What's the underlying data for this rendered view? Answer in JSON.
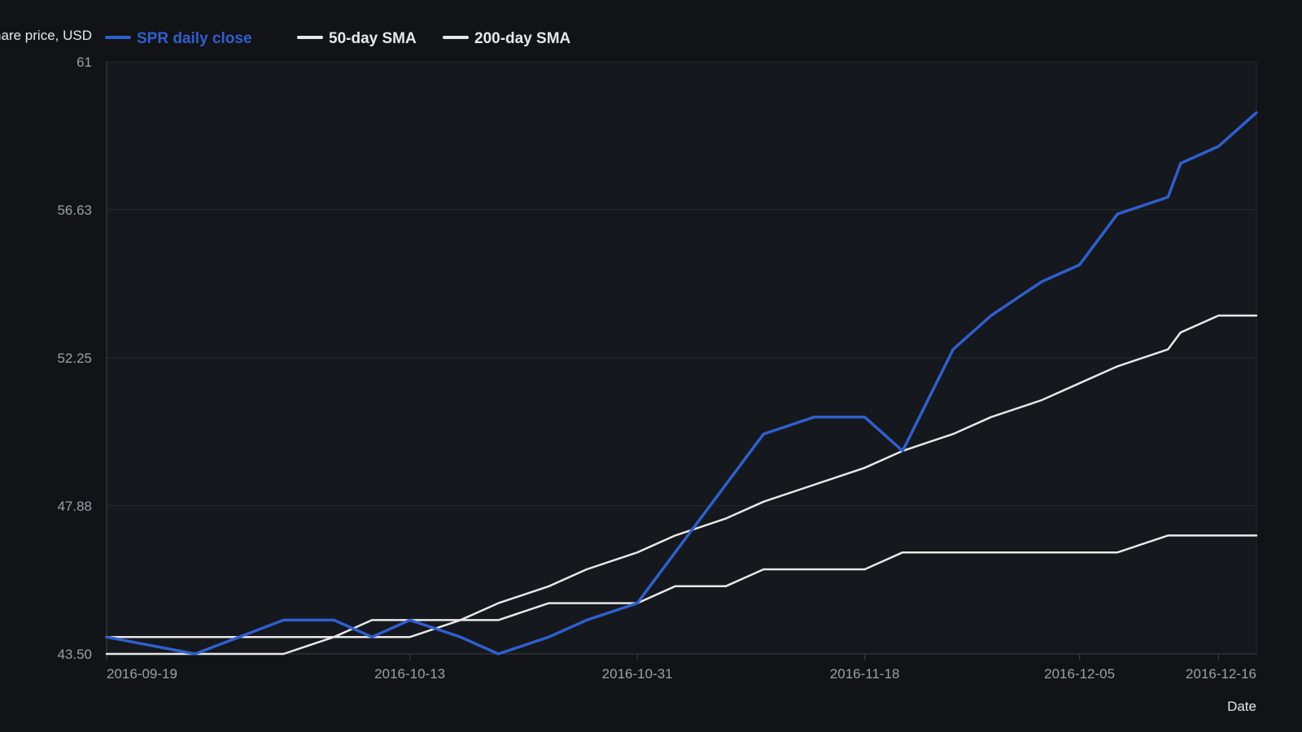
{
  "chart_data": {
    "type": "line",
    "title": "",
    "xlabel": "Date",
    "ylabel": "Share price, USD",
    "yticks": [
      "61",
      "56.63",
      "52.25",
      "47.88",
      "43.50"
    ],
    "ylim": [
      43.5,
      61
    ],
    "xlim": [
      "2016-09-19",
      "2016-12-19"
    ],
    "xticks": [
      "2016-09-19",
      "2016-10-13",
      "2016-10-31",
      "2016-11-18",
      "2016-12-05",
      "2016-12-16"
    ],
    "grid": true,
    "legend_position": "top",
    "x": [
      "2016-09-19",
      "2016-09-26",
      "2016-10-03",
      "2016-10-07",
      "2016-10-10",
      "2016-10-13",
      "2016-10-17",
      "2016-10-20",
      "2016-10-24",
      "2016-10-27",
      "2016-10-31",
      "2016-11-03",
      "2016-11-07",
      "2016-11-10",
      "2016-11-14",
      "2016-11-18",
      "2016-11-21",
      "2016-11-25",
      "2016-11-28",
      "2016-12-02",
      "2016-12-05",
      "2016-12-08",
      "2016-12-12",
      "2016-12-13",
      "2016-12-16",
      "2016-12-19"
    ],
    "series": [
      {
        "name": "SPR daily close",
        "color": "#2f5fd0",
        "values": [
          44.0,
          43.5,
          44.5,
          44.5,
          44.0,
          44.5,
          44.0,
          43.5,
          44.0,
          44.5,
          45.0,
          46.5,
          48.5,
          50.0,
          50.5,
          50.5,
          49.5,
          52.5,
          53.5,
          54.5,
          55.0,
          56.5,
          57.0,
          58.0,
          58.5,
          59.5
        ]
      },
      {
        "name": "50-day SMA",
        "color": "#e8e8e8",
        "values": [
          43.5,
          43.5,
          43.5,
          44.0,
          44.5,
          44.5,
          44.5,
          45.0,
          45.5,
          46.0,
          46.5,
          47.0,
          47.5,
          48.0,
          48.5,
          49.0,
          49.5,
          50.0,
          50.5,
          51.0,
          51.5,
          52.0,
          52.5,
          53.0,
          53.5,
          53.5
        ]
      },
      {
        "name": "200-day SMA",
        "color": "#e8e8e8",
        "values": [
          44.0,
          44.0,
          44.0,
          44.0,
          44.0,
          44.0,
          44.5,
          44.5,
          45.0,
          45.0,
          45.0,
          45.5,
          45.5,
          46.0,
          46.0,
          46.0,
          46.5,
          46.5,
          46.5,
          46.5,
          46.5,
          46.5,
          47.0,
          47.0,
          47.0,
          47.0
        ]
      }
    ]
  }
}
